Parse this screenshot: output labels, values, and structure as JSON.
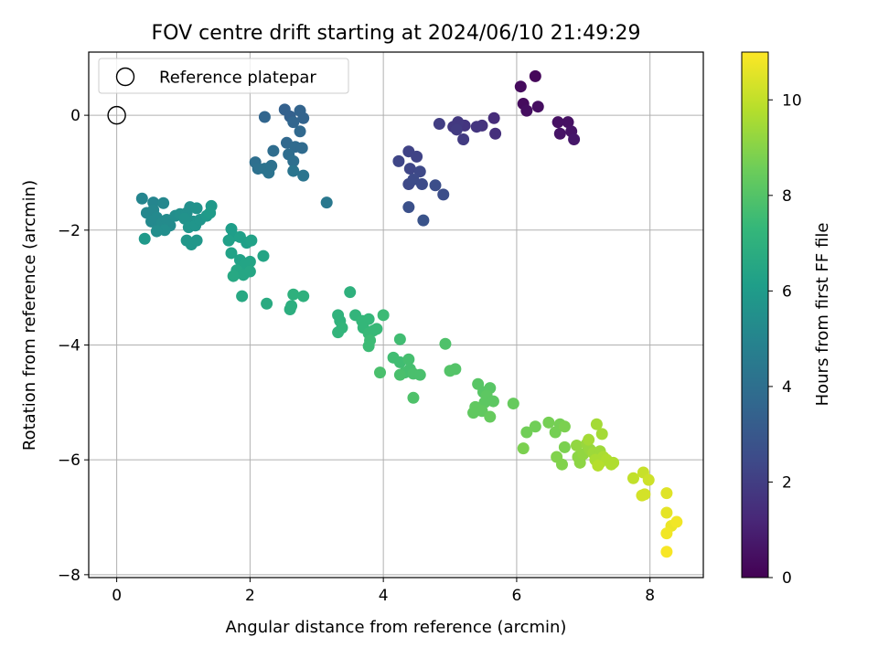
{
  "chart_data": {
    "type": "scatter",
    "title": "FOV centre drift starting at 2024/06/10 21:49:29",
    "xlabel": "Angular distance from reference (arcmin)",
    "ylabel": "Rotation from reference (arcmin)",
    "xlim": [
      -0.42,
      8.8
    ],
    "ylim": [
      -8.05,
      1.1
    ],
    "xticks": [
      0,
      2,
      4,
      6,
      8
    ],
    "yticks": [
      0,
      -2,
      -4,
      -6,
      -8
    ],
    "grid": true,
    "legend": {
      "position": "top-left",
      "entries": [
        "Reference platepar"
      ]
    },
    "reference_point": {
      "x": 0,
      "y": 0,
      "label": "Reference platepar"
    },
    "colorbar": {
      "label": "Hours from first FF file",
      "colormap": "viridis",
      "range": [
        0,
        11
      ],
      "ticks": [
        0,
        2,
        4,
        6,
        8,
        10
      ]
    },
    "points": [
      {
        "x": 6.28,
        "y": 0.68,
        "h": 0.2
      },
      {
        "x": 6.06,
        "y": 0.5,
        "h": 0.3
      },
      {
        "x": 6.1,
        "y": 0.2,
        "h": 0.3
      },
      {
        "x": 6.15,
        "y": 0.08,
        "h": 0.4
      },
      {
        "x": 6.32,
        "y": 0.15,
        "h": 0.4
      },
      {
        "x": 6.62,
        "y": -0.12,
        "h": 0.5
      },
      {
        "x": 6.77,
        "y": -0.12,
        "h": 0.5
      },
      {
        "x": 6.65,
        "y": -0.32,
        "h": 0.6
      },
      {
        "x": 6.82,
        "y": -0.28,
        "h": 0.6
      },
      {
        "x": 6.86,
        "y": -0.42,
        "h": 0.7
      },
      {
        "x": 5.66,
        "y": -0.05,
        "h": 1.4
      },
      {
        "x": 5.68,
        "y": -0.32,
        "h": 1.5
      },
      {
        "x": 5.48,
        "y": -0.18,
        "h": 1.6
      },
      {
        "x": 5.4,
        "y": -0.2,
        "h": 1.7
      },
      {
        "x": 5.22,
        "y": -0.18,
        "h": 1.7
      },
      {
        "x": 5.12,
        "y": -0.12,
        "h": 1.8
      },
      {
        "x": 5.05,
        "y": -0.2,
        "h": 1.8
      },
      {
        "x": 5.1,
        "y": -0.25,
        "h": 1.9
      },
      {
        "x": 5.2,
        "y": -0.42,
        "h": 1.9
      },
      {
        "x": 4.84,
        "y": -0.15,
        "h": 2.0
      },
      {
        "x": 4.38,
        "y": -0.63,
        "h": 2.2
      },
      {
        "x": 4.5,
        "y": -0.72,
        "h": 2.2
      },
      {
        "x": 4.23,
        "y": -0.8,
        "h": 2.3
      },
      {
        "x": 4.4,
        "y": -0.93,
        "h": 2.3
      },
      {
        "x": 4.55,
        "y": -0.98,
        "h": 2.4
      },
      {
        "x": 4.38,
        "y": -1.2,
        "h": 2.4
      },
      {
        "x": 4.45,
        "y": -1.12,
        "h": 2.5
      },
      {
        "x": 4.58,
        "y": -1.2,
        "h": 2.5
      },
      {
        "x": 4.78,
        "y": -1.22,
        "h": 2.6
      },
      {
        "x": 4.9,
        "y": -1.38,
        "h": 2.6
      },
      {
        "x": 4.38,
        "y": -1.6,
        "h": 2.7
      },
      {
        "x": 4.6,
        "y": -1.83,
        "h": 2.8
      },
      {
        "x": 2.52,
        "y": 0.1,
        "h": 3.4
      },
      {
        "x": 2.6,
        "y": -0.02,
        "h": 3.4
      },
      {
        "x": 2.75,
        "y": 0.08,
        "h": 3.5
      },
      {
        "x": 2.8,
        "y": -0.05,
        "h": 3.5
      },
      {
        "x": 2.65,
        "y": -0.12,
        "h": 3.6
      },
      {
        "x": 2.22,
        "y": -0.03,
        "h": 3.6
      },
      {
        "x": 2.75,
        "y": -0.28,
        "h": 3.7
      },
      {
        "x": 2.55,
        "y": -0.48,
        "h": 3.7
      },
      {
        "x": 2.68,
        "y": -0.55,
        "h": 3.8
      },
      {
        "x": 2.78,
        "y": -0.57,
        "h": 3.8
      },
      {
        "x": 2.35,
        "y": -0.62,
        "h": 3.9
      },
      {
        "x": 2.58,
        "y": -0.68,
        "h": 3.9
      },
      {
        "x": 2.65,
        "y": -0.8,
        "h": 4.0
      },
      {
        "x": 2.08,
        "y": -0.82,
        "h": 4.0
      },
      {
        "x": 2.32,
        "y": -0.88,
        "h": 4.1
      },
      {
        "x": 2.12,
        "y": -0.93,
        "h": 4.1
      },
      {
        "x": 2.22,
        "y": -0.93,
        "h": 4.2
      },
      {
        "x": 2.28,
        "y": -1.0,
        "h": 4.2
      },
      {
        "x": 2.65,
        "y": -0.97,
        "h": 4.3
      },
      {
        "x": 2.8,
        "y": -1.05,
        "h": 4.3
      },
      {
        "x": 3.15,
        "y": -1.52,
        "h": 4.4
      },
      {
        "x": 0.38,
        "y": -1.45,
        "h": 5.0
      },
      {
        "x": 0.55,
        "y": -1.52,
        "h": 5.0
      },
      {
        "x": 0.7,
        "y": -1.53,
        "h": 5.1
      },
      {
        "x": 0.45,
        "y": -1.7,
        "h": 5.1
      },
      {
        "x": 0.55,
        "y": -1.65,
        "h": 5.1
      },
      {
        "x": 0.6,
        "y": -1.78,
        "h": 5.2
      },
      {
        "x": 0.52,
        "y": -1.85,
        "h": 5.2
      },
      {
        "x": 0.62,
        "y": -1.95,
        "h": 5.2
      },
      {
        "x": 0.68,
        "y": -1.88,
        "h": 5.3
      },
      {
        "x": 0.75,
        "y": -1.82,
        "h": 5.3
      },
      {
        "x": 0.8,
        "y": -1.92,
        "h": 5.3
      },
      {
        "x": 0.72,
        "y": -2.0,
        "h": 5.4
      },
      {
        "x": 0.6,
        "y": -2.02,
        "h": 5.4
      },
      {
        "x": 0.88,
        "y": -1.75,
        "h": 5.4
      },
      {
        "x": 0.95,
        "y": -1.72,
        "h": 5.5
      },
      {
        "x": 1.05,
        "y": -1.7,
        "h": 5.5
      },
      {
        "x": 1.1,
        "y": -1.6,
        "h": 5.5
      },
      {
        "x": 1.2,
        "y": -1.62,
        "h": 5.6
      },
      {
        "x": 1.15,
        "y": -1.85,
        "h": 5.6
      },
      {
        "x": 1.02,
        "y": -1.8,
        "h": 5.6
      },
      {
        "x": 1.08,
        "y": -1.95,
        "h": 5.7
      },
      {
        "x": 1.18,
        "y": -1.92,
        "h": 5.7
      },
      {
        "x": 1.25,
        "y": -1.82,
        "h": 5.7
      },
      {
        "x": 1.05,
        "y": -2.18,
        "h": 5.8
      },
      {
        "x": 1.12,
        "y": -2.25,
        "h": 5.8
      },
      {
        "x": 1.2,
        "y": -2.18,
        "h": 5.8
      },
      {
        "x": 0.42,
        "y": -2.15,
        "h": 5.9
      },
      {
        "x": 1.42,
        "y": -1.58,
        "h": 5.9
      },
      {
        "x": 1.35,
        "y": -1.75,
        "h": 5.9
      },
      {
        "x": 1.4,
        "y": -1.7,
        "h": 6.0
      },
      {
        "x": 1.72,
        "y": -1.98,
        "h": 6.1
      },
      {
        "x": 1.75,
        "y": -2.1,
        "h": 6.1
      },
      {
        "x": 1.68,
        "y": -2.18,
        "h": 6.2
      },
      {
        "x": 1.85,
        "y": -2.12,
        "h": 6.2
      },
      {
        "x": 1.95,
        "y": -2.22,
        "h": 6.2
      },
      {
        "x": 2.02,
        "y": -2.18,
        "h": 6.3
      },
      {
        "x": 1.72,
        "y": -2.4,
        "h": 6.3
      },
      {
        "x": 1.85,
        "y": -2.52,
        "h": 6.3
      },
      {
        "x": 1.92,
        "y": -2.6,
        "h": 6.4
      },
      {
        "x": 2.0,
        "y": -2.55,
        "h": 6.4
      },
      {
        "x": 2.2,
        "y": -2.45,
        "h": 6.4
      },
      {
        "x": 1.8,
        "y": -2.7,
        "h": 6.5
      },
      {
        "x": 1.9,
        "y": -2.78,
        "h": 6.5
      },
      {
        "x": 2.0,
        "y": -2.72,
        "h": 6.5
      },
      {
        "x": 1.75,
        "y": -2.8,
        "h": 6.6
      },
      {
        "x": 1.88,
        "y": -3.15,
        "h": 6.6
      },
      {
        "x": 2.25,
        "y": -3.28,
        "h": 6.7
      },
      {
        "x": 2.6,
        "y": -3.38,
        "h": 6.9
      },
      {
        "x": 2.62,
        "y": -3.32,
        "h": 6.9
      },
      {
        "x": 2.65,
        "y": -3.12,
        "h": 7.0
      },
      {
        "x": 2.8,
        "y": -3.15,
        "h": 7.0
      },
      {
        "x": 3.5,
        "y": -3.08,
        "h": 7.0
      },
      {
        "x": 3.32,
        "y": -3.48,
        "h": 7.1
      },
      {
        "x": 3.35,
        "y": -3.58,
        "h": 7.1
      },
      {
        "x": 3.38,
        "y": -3.7,
        "h": 7.2
      },
      {
        "x": 3.32,
        "y": -3.78,
        "h": 7.2
      },
      {
        "x": 3.58,
        "y": -3.48,
        "h": 7.2
      },
      {
        "x": 3.68,
        "y": -3.58,
        "h": 7.3
      },
      {
        "x": 3.78,
        "y": -3.55,
        "h": 7.3
      },
      {
        "x": 3.7,
        "y": -3.7,
        "h": 7.3
      },
      {
        "x": 3.78,
        "y": -3.8,
        "h": 7.4
      },
      {
        "x": 3.85,
        "y": -3.75,
        "h": 7.4
      },
      {
        "x": 3.9,
        "y": -3.72,
        "h": 7.4
      },
      {
        "x": 3.8,
        "y": -3.92,
        "h": 7.5
      },
      {
        "x": 3.78,
        "y": -4.02,
        "h": 7.5
      },
      {
        "x": 4.0,
        "y": -3.48,
        "h": 7.5
      },
      {
        "x": 4.25,
        "y": -3.9,
        "h": 7.6
      },
      {
        "x": 4.15,
        "y": -4.22,
        "h": 7.6
      },
      {
        "x": 4.25,
        "y": -4.3,
        "h": 7.6
      },
      {
        "x": 4.38,
        "y": -4.25,
        "h": 7.7
      },
      {
        "x": 4.4,
        "y": -4.42,
        "h": 7.7
      },
      {
        "x": 4.32,
        "y": -4.48,
        "h": 7.7
      },
      {
        "x": 4.25,
        "y": -4.52,
        "h": 7.8
      },
      {
        "x": 4.45,
        "y": -4.5,
        "h": 7.8
      },
      {
        "x": 4.55,
        "y": -4.52,
        "h": 7.8
      },
      {
        "x": 3.95,
        "y": -4.48,
        "h": 7.8
      },
      {
        "x": 4.45,
        "y": -4.92,
        "h": 7.9
      },
      {
        "x": 4.93,
        "y": -3.98,
        "h": 7.9
      },
      {
        "x": 5.0,
        "y": -4.45,
        "h": 8.0
      },
      {
        "x": 5.08,
        "y": -4.42,
        "h": 8.0
      },
      {
        "x": 5.42,
        "y": -4.68,
        "h": 8.1
      },
      {
        "x": 5.5,
        "y": -4.82,
        "h": 8.1
      },
      {
        "x": 5.6,
        "y": -4.75,
        "h": 8.1
      },
      {
        "x": 5.55,
        "y": -4.88,
        "h": 8.2
      },
      {
        "x": 5.52,
        "y": -5.0,
        "h": 8.2
      },
      {
        "x": 5.65,
        "y": -4.98,
        "h": 8.2
      },
      {
        "x": 5.38,
        "y": -5.08,
        "h": 8.3
      },
      {
        "x": 5.35,
        "y": -5.18,
        "h": 8.3
      },
      {
        "x": 5.48,
        "y": -5.15,
        "h": 8.3
      },
      {
        "x": 5.6,
        "y": -5.25,
        "h": 8.4
      },
      {
        "x": 5.95,
        "y": -5.02,
        "h": 8.4
      },
      {
        "x": 6.15,
        "y": -5.52,
        "h": 8.6
      },
      {
        "x": 6.28,
        "y": -5.42,
        "h": 8.6
      },
      {
        "x": 6.48,
        "y": -5.35,
        "h": 8.7
      },
      {
        "x": 6.58,
        "y": -5.52,
        "h": 8.7
      },
      {
        "x": 6.65,
        "y": -5.38,
        "h": 8.7
      },
      {
        "x": 6.72,
        "y": -5.42,
        "h": 8.8
      },
      {
        "x": 6.1,
        "y": -5.8,
        "h": 8.8
      },
      {
        "x": 6.72,
        "y": -5.78,
        "h": 8.8
      },
      {
        "x": 6.6,
        "y": -5.95,
        "h": 8.9
      },
      {
        "x": 6.68,
        "y": -6.08,
        "h": 8.9
      },
      {
        "x": 6.92,
        "y": -5.95,
        "h": 9.1
      },
      {
        "x": 6.95,
        "y": -6.05,
        "h": 9.1
      },
      {
        "x": 7.0,
        "y": -5.9,
        "h": 9.2
      },
      {
        "x": 6.9,
        "y": -5.75,
        "h": 9.2
      },
      {
        "x": 7.05,
        "y": -5.72,
        "h": 9.3
      },
      {
        "x": 7.1,
        "y": -5.82,
        "h": 9.3
      },
      {
        "x": 7.15,
        "y": -5.88,
        "h": 9.4
      },
      {
        "x": 7.2,
        "y": -5.95,
        "h": 9.4
      },
      {
        "x": 7.25,
        "y": -5.85,
        "h": 9.4
      },
      {
        "x": 7.08,
        "y": -5.65,
        "h": 9.5
      },
      {
        "x": 7.2,
        "y": -5.38,
        "h": 9.5
      },
      {
        "x": 7.28,
        "y": -5.55,
        "h": 9.5
      },
      {
        "x": 7.3,
        "y": -5.95,
        "h": 9.6
      },
      {
        "x": 7.25,
        "y": -6.05,
        "h": 9.6
      },
      {
        "x": 7.18,
        "y": -6.0,
        "h": 9.6
      },
      {
        "x": 7.35,
        "y": -6.0,
        "h": 9.7
      },
      {
        "x": 7.45,
        "y": -6.05,
        "h": 9.7
      },
      {
        "x": 7.42,
        "y": -6.08,
        "h": 9.7
      },
      {
        "x": 7.22,
        "y": -6.1,
        "h": 9.8
      },
      {
        "x": 7.75,
        "y": -6.32,
        "h": 10.0
      },
      {
        "x": 7.9,
        "y": -6.22,
        "h": 10.1
      },
      {
        "x": 7.98,
        "y": -6.35,
        "h": 10.2
      },
      {
        "x": 7.92,
        "y": -6.6,
        "h": 10.3
      },
      {
        "x": 7.88,
        "y": -6.62,
        "h": 10.3
      },
      {
        "x": 8.25,
        "y": -6.58,
        "h": 10.5
      },
      {
        "x": 8.25,
        "y": -6.92,
        "h": 10.6
      },
      {
        "x": 8.32,
        "y": -7.15,
        "h": 10.7
      },
      {
        "x": 8.4,
        "y": -7.08,
        "h": 10.8
      },
      {
        "x": 8.25,
        "y": -7.28,
        "h": 10.8
      },
      {
        "x": 8.25,
        "y": -7.6,
        "h": 10.9
      }
    ]
  }
}
